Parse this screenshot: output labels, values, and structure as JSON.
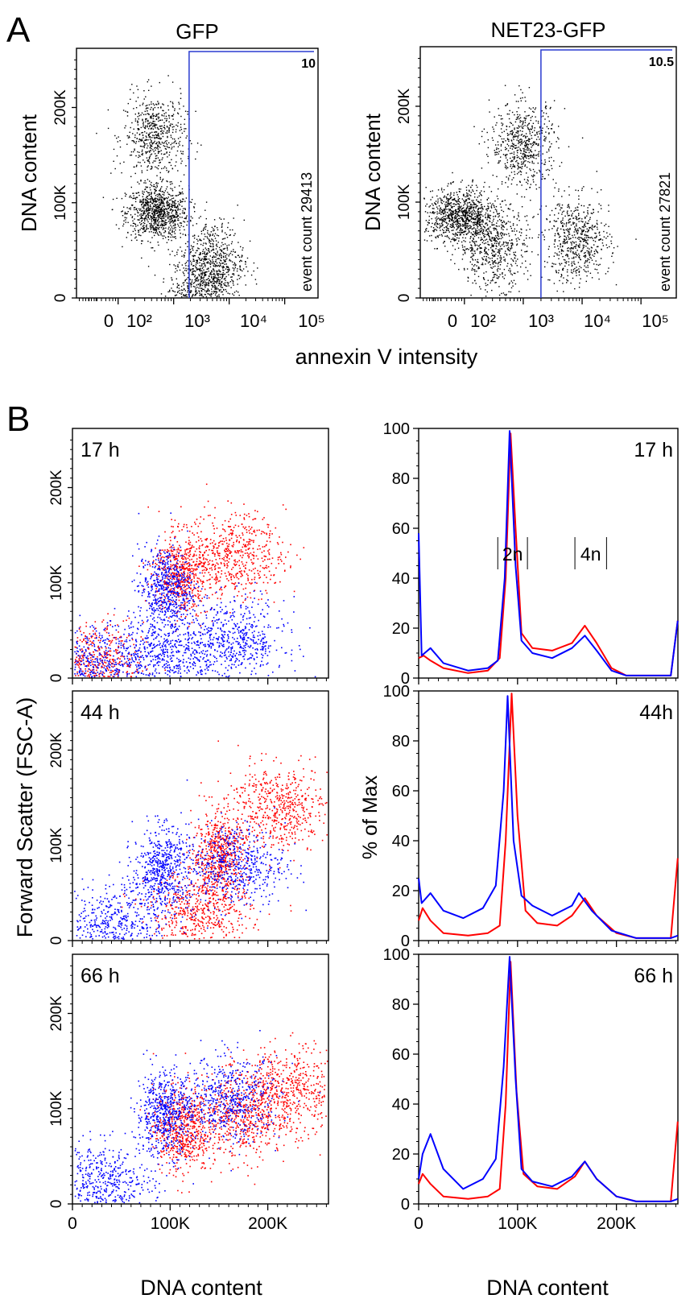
{
  "panel_labels": {
    "a": "A",
    "b": "B"
  },
  "chart_data": [
    {
      "id": "A-left",
      "type": "scatter",
      "title": "GFP",
      "xlabel": "annexin V intensity",
      "ylabel": "DNA content",
      "x_scale": "log",
      "x_ticklabels": [
        "0",
        "10²",
        "10³",
        "10⁴",
        "10⁵"
      ],
      "y_ticklabels": [
        "0",
        "100K",
        "200K"
      ],
      "ylim": [
        0,
        262144
      ],
      "gate": {
        "value": "10",
        "x_threshold": 1900,
        "color": "#2a3bd0"
      },
      "annotation": "event count 29413",
      "clusters": [
        {
          "x": 500,
          "y": 90000
        },
        {
          "x": 450,
          "y": 170000
        },
        {
          "x": 5000,
          "y": 38000
        },
        {
          "x": 3000,
          "y": 5000
        }
      ],
      "point_color": "#000000"
    },
    {
      "id": "A-right",
      "type": "scatter",
      "title": "NET23-GFP",
      "xlabel": "annexin V intensity",
      "ylabel": "DNA content",
      "x_scale": "log",
      "x_ticklabels": [
        "0",
        "10²",
        "10³",
        "10⁴",
        "10⁵"
      ],
      "y_ticklabels": [
        "0",
        "100K",
        "200K"
      ],
      "ylim": [
        0,
        262144
      ],
      "gate": {
        "value": "10.5",
        "x_threshold": 2000,
        "color": "#2a3bd0"
      },
      "annotation": "event count 27821",
      "clusters": [
        {
          "x": 80,
          "y": 85000
        },
        {
          "x": 300,
          "y": 55000
        },
        {
          "x": 1000,
          "y": 160000
        },
        {
          "x": 8000,
          "y": 60000
        }
      ],
      "point_color": "#000000"
    },
    {
      "id": "B-scatter-17h",
      "type": "scatter",
      "label": "17 h",
      "xlabel": "DNA content",
      "ylabel": "Forward Scatter (FSC-A)",
      "x_ticklabels": [
        "0",
        "100K",
        "200K"
      ],
      "y_ticklabels": [
        "0",
        "100K",
        "200K"
      ],
      "xlim": [
        0,
        262144
      ],
      "ylim": [
        0,
        262144
      ],
      "series": [
        {
          "color": "#ff0000",
          "clusters": [
            {
              "x": 110000,
              "y": 110000
            },
            {
              "x": 165000,
              "y": 130000
            },
            {
              "x": 20000,
              "y": 15000
            }
          ]
        },
        {
          "color": "#0000ff",
          "clusters": [
            {
              "x": 95000,
              "y": 95000
            },
            {
              "x": 95000,
              "y": 25000
            },
            {
              "x": 165000,
              "y": 40000
            },
            {
              "x": 20000,
              "y": 12000
            }
          ]
        }
      ]
    },
    {
      "id": "B-scatter-44h",
      "type": "scatter",
      "label": "44 h",
      "xlabel": "DNA content",
      "ylabel": "Forward Scatter (FSC-A)",
      "x_ticklabels": [
        "0",
        "100K",
        "200K"
      ],
      "y_ticklabels": [
        "0",
        "100K",
        "200K"
      ],
      "xlim": [
        0,
        262144
      ],
      "ylim": [
        0,
        262144
      ],
      "series": [
        {
          "color": "#ff0000",
          "clusters": [
            {
              "x": 150000,
              "y": 90000
            },
            {
              "x": 130000,
              "y": 30000
            },
            {
              "x": 210000,
              "y": 140000
            }
          ]
        },
        {
          "color": "#0000ff",
          "clusters": [
            {
              "x": 90000,
              "y": 75000
            },
            {
              "x": 40000,
              "y": 15000
            },
            {
              "x": 165000,
              "y": 80000
            }
          ]
        }
      ]
    },
    {
      "id": "B-scatter-66h",
      "type": "scatter",
      "label": "66 h",
      "xlabel": "DNA content",
      "ylabel": "Forward Scatter (FSC-A)",
      "x_ticklabels": [
        "0",
        "100K",
        "200K"
      ],
      "y_ticklabels": [
        "0",
        "100K",
        "200K"
      ],
      "xlim": [
        0,
        262144
      ],
      "ylim": [
        0,
        262144
      ],
      "series": [
        {
          "color": "#ff0000",
          "clusters": [
            {
              "x": 110000,
              "y": 80000
            },
            {
              "x": 170000,
              "y": 90000
            },
            {
              "x": 220000,
              "y": 120000
            }
          ]
        },
        {
          "color": "#0000ff",
          "clusters": [
            {
              "x": 93000,
              "y": 95000
            },
            {
              "x": 160000,
              "y": 110000
            },
            {
              "x": 30000,
              "y": 20000
            }
          ]
        }
      ]
    },
    {
      "id": "B-hist-17h",
      "type": "line",
      "label": "17 h",
      "xlabel": "DNA content",
      "ylabel": "% of Max",
      "x_ticklabels": [
        "0",
        "100K",
        "200K"
      ],
      "y_ticklabels": [
        "0",
        "20",
        "40",
        "60",
        "80",
        "100"
      ],
      "xlim": [
        0,
        262144
      ],
      "ylim": [
        0,
        100
      ],
      "annotations": [
        "2n",
        "4n"
      ],
      "series": [
        {
          "color": "#ff0000",
          "x": [
            0,
            5000,
            12000,
            25000,
            50000,
            70000,
            82000,
            88000,
            93000,
            98000,
            104000,
            115000,
            135000,
            155000,
            168000,
            180000,
            195000,
            210000,
            255000,
            262000
          ],
          "y": [
            8,
            9,
            7,
            4,
            2,
            3,
            8,
            40,
            98,
            60,
            18,
            12,
            11,
            14,
            21,
            14,
            4,
            1,
            1,
            23
          ]
        },
        {
          "color": "#0000ff",
          "x": [
            0,
            3000,
            12000,
            25000,
            50000,
            70000,
            80000,
            87000,
            92000,
            98000,
            104000,
            115000,
            135000,
            155000,
            168000,
            180000,
            195000,
            210000,
            255000,
            262000
          ],
          "y": [
            58,
            9,
            12,
            6,
            3,
            4,
            7,
            40,
            99,
            45,
            15,
            10,
            8,
            12,
            17,
            11,
            3,
            1,
            1,
            23
          ]
        }
      ]
    },
    {
      "id": "B-hist-44h",
      "type": "line",
      "label": "44h",
      "xlabel": "DNA content",
      "ylabel": "% of Max",
      "x_ticklabels": [
        "0",
        "100K",
        "200K"
      ],
      "y_ticklabels": [
        "0",
        "20",
        "40",
        "60",
        "80",
        "100"
      ],
      "xlim": [
        0,
        262144
      ],
      "ylim": [
        0,
        100
      ],
      "series": [
        {
          "color": "#ff0000",
          "x": [
            0,
            4000,
            12000,
            25000,
            50000,
            70000,
            82000,
            88000,
            94000,
            100000,
            108000,
            120000,
            140000,
            155000,
            168000,
            180000,
            200000,
            220000,
            255000,
            262000
          ],
          "y": [
            8,
            13,
            8,
            3,
            2,
            3,
            6,
            40,
            99,
            50,
            12,
            7,
            6,
            10,
            17,
            10,
            3,
            1,
            1,
            33
          ]
        },
        {
          "color": "#0000ff",
          "x": [
            0,
            3000,
            12000,
            25000,
            45000,
            65000,
            78000,
            86000,
            90000,
            96000,
            104000,
            115000,
            135000,
            155000,
            162000,
            175000,
            195000,
            220000,
            255000,
            262000
          ],
          "y": [
            25,
            15,
            19,
            12,
            9,
            13,
            22,
            60,
            98,
            40,
            18,
            14,
            10,
            14,
            19,
            12,
            4,
            1,
            1,
            2
          ]
        }
      ]
    },
    {
      "id": "B-hist-66h",
      "type": "line",
      "label": "66 h",
      "xlabel": "DNA content",
      "ylabel": "% of Max",
      "x_ticklabels": [
        "0",
        "100K",
        "200K"
      ],
      "y_ticklabels": [
        "0",
        "20",
        "40",
        "60",
        "80",
        "100"
      ],
      "xlim": [
        0,
        262144
      ],
      "ylim": [
        0,
        100
      ],
      "series": [
        {
          "color": "#ff0000",
          "x": [
            0,
            4000,
            12000,
            25000,
            50000,
            70000,
            82000,
            88000,
            93000,
            99000,
            106000,
            120000,
            140000,
            158000,
            168000,
            180000,
            200000,
            220000,
            255000,
            262000
          ],
          "y": [
            8,
            12,
            8,
            3,
            2,
            3,
            6,
            40,
            97,
            45,
            12,
            7,
            6,
            11,
            17,
            10,
            3,
            1,
            1,
            33
          ]
        },
        {
          "color": "#0000ff",
          "x": [
            0,
            4000,
            12000,
            25000,
            45000,
            65000,
            78000,
            86000,
            92000,
            98000,
            104000,
            115000,
            135000,
            155000,
            168000,
            180000,
            200000,
            220000,
            255000,
            262000
          ],
          "y": [
            10,
            20,
            28,
            14,
            6,
            10,
            18,
            55,
            99,
            50,
            14,
            9,
            7,
            11,
            17,
            10,
            3,
            1,
            1,
            2
          ]
        }
      ]
    }
  ]
}
